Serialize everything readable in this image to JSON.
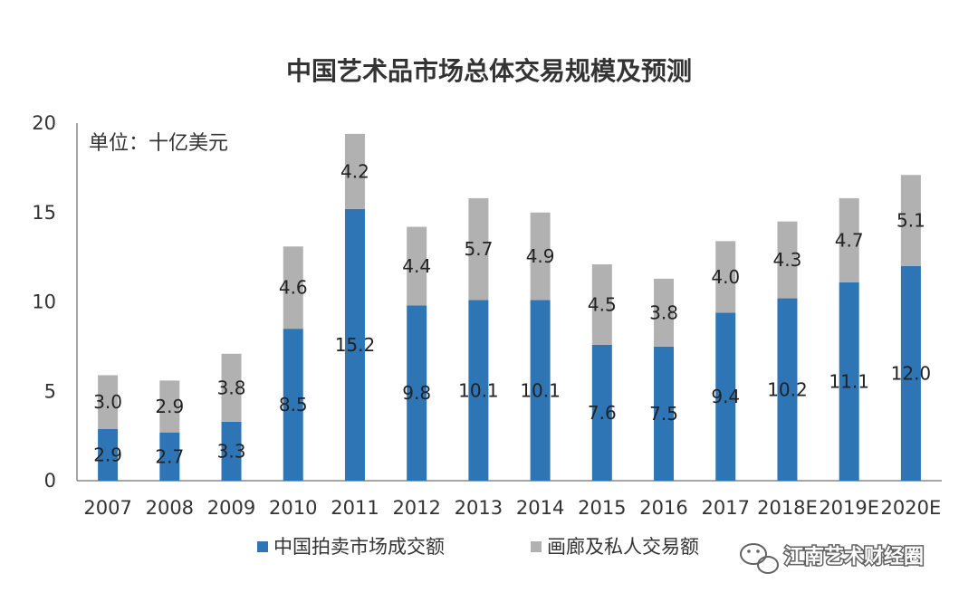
{
  "chart_data": {
    "type": "bar",
    "stacked": true,
    "title": "中国艺术品市场总体交易规模及预测",
    "unit_label": "单位：十亿美元",
    "categories": [
      "2007",
      "2008",
      "2009",
      "2010",
      "2011",
      "2012",
      "2013",
      "2014",
      "2015",
      "2016",
      "2017",
      "2018E",
      "2019E",
      "2020E"
    ],
    "series": [
      {
        "name": "中国拍卖市场成交额",
        "color": "#2e75b6",
        "values": [
          2.9,
          2.7,
          3.3,
          8.5,
          15.2,
          9.8,
          10.1,
          10.1,
          7.6,
          7.5,
          9.4,
          10.2,
          11.1,
          12.0
        ],
        "labels": [
          "2.9",
          "2.7",
          "3.3",
          "8.5",
          "15.2",
          "9.8",
          "10.1",
          "10.1",
          "7.6",
          "7.5",
          "9.4",
          "10.2",
          "11.1",
          "12.0"
        ]
      },
      {
        "name": "画廊及私人交易额",
        "color": "#b1b1b1",
        "values": [
          3.0,
          2.9,
          3.8,
          4.6,
          4.2,
          4.4,
          5.7,
          4.9,
          4.5,
          3.8,
          4.0,
          4.3,
          4.7,
          5.1
        ],
        "labels": [
          "3.0",
          "2.9",
          "3.8",
          "4.6",
          "4.2",
          "4.4",
          "5.7",
          "4.9",
          "4.5",
          "3.8",
          "4.0",
          "4.3",
          "4.7",
          "5.1"
        ]
      }
    ],
    "ylim": [
      0,
      20
    ],
    "yticks": [
      "0",
      "5",
      "10",
      "15",
      "20"
    ],
    "legend_position": "bottom",
    "grid": false
  },
  "watermark": {
    "text": "江南艺术财经圈",
    "icon": "wechat-icon"
  }
}
